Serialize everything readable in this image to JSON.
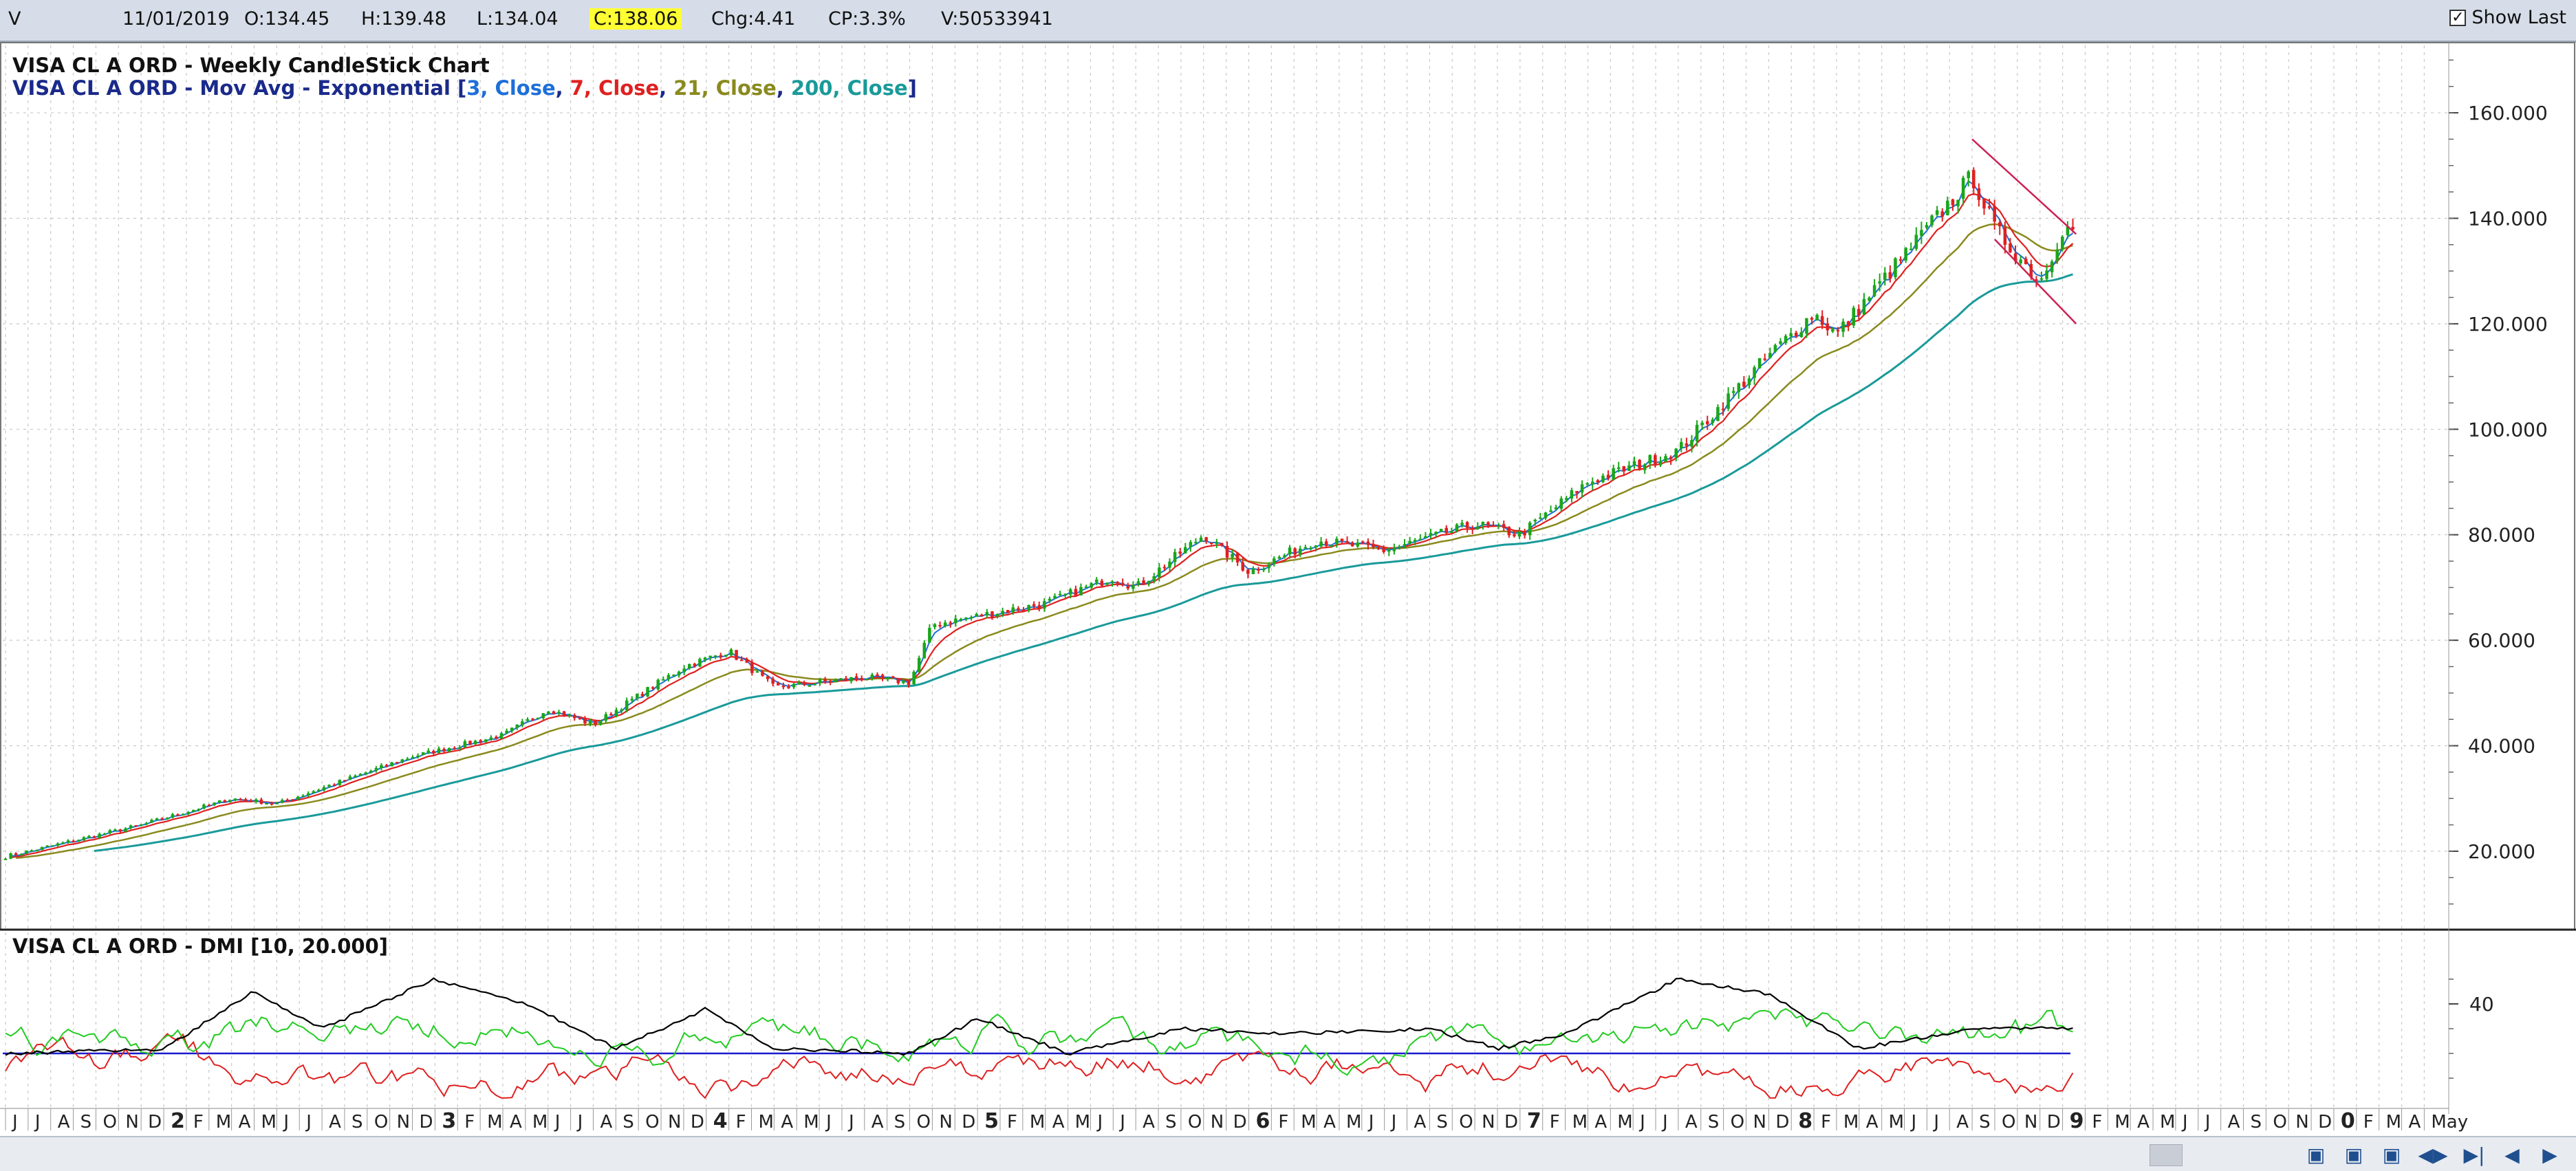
{
  "header": {
    "symbol": "V",
    "date": "11/01/2019",
    "open": "O:134.45",
    "high": "H:139.48",
    "low": "L:134.04",
    "close": "C:138.06",
    "change": "Chg:4.41",
    "change_pct": "CP:3.3%",
    "volume": "V:50533941",
    "show_last_label": "Show Last",
    "show_last_checked": true
  },
  "legend": {
    "title": "VISA CL A ORD - Weekly CandleStick Chart",
    "ma_prefix": "VISA CL A ORD - Mov Avg - Exponential [",
    "ma_parts": [
      {
        "text": "3, Close",
        "color": "#1e6fd9"
      },
      {
        "text": "7, Close",
        "color": "#e02020"
      },
      {
        "text": "21, Close",
        "color": "#8a8a1e"
      },
      {
        "text": "200, Close",
        "color": "#1a9a9a"
      }
    ],
    "ma_suffix": "]",
    "dmi_title": "VISA CL A ORD - DMI [10, 20.000]"
  },
  "colors": {
    "up": "#1aa61a",
    "down": "#e02020",
    "ema3": "#1e6fd9",
    "ema7": "#e02020",
    "ema21": "#8a8a1e",
    "ema200": "#1a9a9a",
    "adx": "#000000",
    "dip": "#22cc22",
    "dim": "#e02020",
    "threshold": "#1a1acc",
    "trend": "#cc2255"
  },
  "chart_data": [
    {
      "type": "candlestick",
      "title": "VISA CL A ORD - Weekly CandleStick Chart",
      "y_ticks": [
        "20.000",
        "40.000",
        "60.000",
        "80.000",
        "100.000",
        "120.000",
        "140.000",
        "160.000"
      ],
      "ylim": [
        8,
        172
      ],
      "grid": true,
      "close_anchors": [
        {
          "x": "2011-06",
          "y": 19
        },
        {
          "x": "2011-08",
          "y": 21
        },
        {
          "x": "2011-12",
          "y": 25
        },
        {
          "x": "2012-04",
          "y": 30
        },
        {
          "x": "2012-06",
          "y": 29
        },
        {
          "x": "2012-12",
          "y": 38
        },
        {
          "x": "2013-04",
          "y": 42
        },
        {
          "x": "2013-06",
          "y": 47
        },
        {
          "x": "2013-08",
          "y": 44
        },
        {
          "x": "2013-12",
          "y": 55
        },
        {
          "x": "2014-02",
          "y": 58
        },
        {
          "x": "2014-04",
          "y": 51
        },
        {
          "x": "2014-08",
          "y": 53
        },
        {
          "x": "2014-10",
          "y": 52
        },
        {
          "x": "2014-11",
          "y": 63
        },
        {
          "x": "2015-04",
          "y": 67
        },
        {
          "x": "2015-07",
          "y": 72
        },
        {
          "x": "2015-08",
          "y": 70
        },
        {
          "x": "2015-11",
          "y": 80
        },
        {
          "x": "2016-01",
          "y": 73
        },
        {
          "x": "2016-04",
          "y": 79
        },
        {
          "x": "2016-07",
          "y": 77
        },
        {
          "x": "2016-11",
          "y": 82
        },
        {
          "x": "2017-01",
          "y": 80
        },
        {
          "x": "2017-04",
          "y": 90
        },
        {
          "x": "2017-08",
          "y": 96
        },
        {
          "x": "2017-12",
          "y": 114
        },
        {
          "x": "2018-02",
          "y": 122
        },
        {
          "x": "2018-03",
          "y": 118
        },
        {
          "x": "2018-06",
          "y": 133
        },
        {
          "x": "2018-09",
          "y": 148
        },
        {
          "x": "2018-10",
          "y": 138
        },
        {
          "x": "2018-12",
          "y": 128
        },
        {
          "x": "2019-01",
          "y": 138
        }
      ],
      "series": [
        {
          "name": "3, Close",
          "kind": "ema",
          "period": 3
        },
        {
          "name": "7, Close",
          "kind": "ema",
          "period": 7
        },
        {
          "name": "21, Close",
          "kind": "ema",
          "period": 21
        },
        {
          "name": "200, Close",
          "kind": "ema",
          "period": 200
        }
      ],
      "trendlines": [
        {
          "from": {
            "x": "2018-09",
            "y": 155
          },
          "to": {
            "x": "2019-01",
            "y": 137
          }
        },
        {
          "from": {
            "x": "2018-10",
            "y": 136
          },
          "to": {
            "x": "2019-01",
            "y": 120
          }
        }
      ]
    },
    {
      "type": "line",
      "title": "VISA CL A ORD - DMI [10, 20.000]",
      "y_ticks": [
        "40"
      ],
      "threshold": 20,
      "ylim": [
        0,
        60
      ],
      "series": [
        {
          "key": "adx",
          "kind": "ADX"
        },
        {
          "key": "dip",
          "kind": "+DI"
        },
        {
          "key": "dim",
          "kind": "-DI"
        }
      ],
      "adx_anchors": [
        {
          "x": "2011-06",
          "y": 20
        },
        {
          "x": "2012-01",
          "y": 22
        },
        {
          "x": "2012-05",
          "y": 45
        },
        {
          "x": "2012-08",
          "y": 30
        },
        {
          "x": "2013-01",
          "y": 50
        },
        {
          "x": "2013-05",
          "y": 40
        },
        {
          "x": "2013-09",
          "y": 22
        },
        {
          "x": "2014-01",
          "y": 38
        },
        {
          "x": "2014-04",
          "y": 22
        },
        {
          "x": "2014-10",
          "y": 20
        },
        {
          "x": "2015-01",
          "y": 34
        },
        {
          "x": "2015-05",
          "y": 20
        },
        {
          "x": "2015-10",
          "y": 30
        },
        {
          "x": "2016-03",
          "y": 28
        },
        {
          "x": "2016-09",
          "y": 30
        },
        {
          "x": "2016-12",
          "y": 22
        },
        {
          "x": "2017-03",
          "y": 28
        },
        {
          "x": "2017-08",
          "y": 50
        },
        {
          "x": "2017-12",
          "y": 44
        },
        {
          "x": "2018-04",
          "y": 22
        },
        {
          "x": "2018-09",
          "y": 30
        },
        {
          "x": "2019-01",
          "y": 30
        }
      ]
    }
  ],
  "x_axis": {
    "labels": [
      "J",
      "J",
      "A",
      "S",
      "O",
      "N",
      "D",
      "2",
      "F",
      "M",
      "A",
      "M",
      "J",
      "J",
      "A",
      "S",
      "O",
      "N",
      "D",
      "3",
      "F",
      "M",
      "A",
      "M",
      "J",
      "J",
      "A",
      "S",
      "O",
      "N",
      "D",
      "4",
      "F",
      "M",
      "A",
      "M",
      "J",
      "J",
      "A",
      "S",
      "O",
      "N",
      "D",
      "5",
      "F",
      "M",
      "A",
      "M",
      "J",
      "J",
      "A",
      "S",
      "O",
      "N",
      "D",
      "6",
      "F",
      "M",
      "A",
      "M",
      "J",
      "J",
      "A",
      "S",
      "O",
      "N",
      "D",
      "7",
      "F",
      "M",
      "A",
      "M",
      "J",
      "J",
      "A",
      "S",
      "O",
      "N",
      "D",
      "8",
      "F",
      "M",
      "A",
      "M",
      "J",
      "J",
      "A",
      "S",
      "O",
      "N",
      "D",
      "9",
      "F",
      "M",
      "A",
      "M",
      "J",
      "J",
      "A",
      "S",
      "O",
      "N",
      "D",
      "0",
      "F",
      "M",
      "A",
      "May"
    ]
  },
  "nav": {
    "buttons": [
      "zoom-in-icon",
      "zoom-out-icon",
      "zoom-fit-icon",
      "scroll-both-icon",
      "scroll-end-icon",
      "arrow-left-icon",
      "arrow-right-icon"
    ]
  }
}
